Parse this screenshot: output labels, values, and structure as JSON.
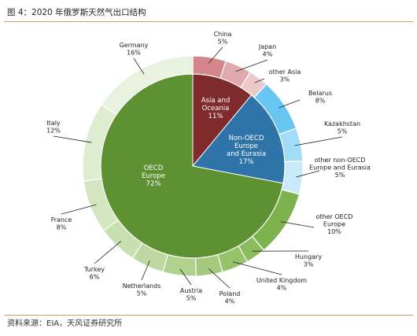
{
  "figure_title": "图 4：2020 年俄罗斯天然气出口结构",
  "source": "资料来源：EIA，天风证券研究所",
  "chart_data": {
    "type": "pie",
    "subtype": "sunburst",
    "inner": [
      {
        "label": "Asia and\nOceania",
        "value": 11,
        "value_label": "11%",
        "color": "#7f2a2b"
      },
      {
        "label": "Non-OECD\nEurope\nand Eurasia",
        "value": 17,
        "value_label": "17%",
        "color": "#2e74a8"
      },
      {
        "label": "OECD\nEurope",
        "value": 72,
        "value_label": "72%",
        "color": "#5e9132"
      }
    ],
    "outer": [
      {
        "label": "China",
        "value": 5,
        "value_label": "5%",
        "parent": 0,
        "color": "#d4868a"
      },
      {
        "label": "Japan",
        "value": 4,
        "value_label": "4%",
        "parent": 0,
        "color": "#e0a9ad"
      },
      {
        "label": "other Asia",
        "value": 3,
        "value_label": "3%",
        "parent": 0,
        "color": "#edc8cb"
      },
      {
        "label": "Belarus",
        "value": 8,
        "value_label": "8%",
        "parent": 1,
        "color": "#67c5f2"
      },
      {
        "label": "Kazakhstan",
        "value": 5,
        "value_label": "5%",
        "parent": 1,
        "color": "#a3dcf7"
      },
      {
        "label": "other non-OECD\nEurope and Eurasia",
        "value": 5,
        "value_label": "5%",
        "parent": 1,
        "color": "#c9eafa"
      },
      {
        "label": "other OECD\nEurope",
        "value": 10,
        "value_label": "10%",
        "parent": 2,
        "color": "#7eb24e"
      },
      {
        "label": "Hungary",
        "value": 3,
        "value_label": "3%",
        "parent": 2,
        "color": "#8cbc5e"
      },
      {
        "label": "United Kingdom",
        "value": 4,
        "value_label": "4%",
        "parent": 2,
        "color": "#96c26a"
      },
      {
        "label": "Poland",
        "value": 4,
        "value_label": "4%",
        "parent": 2,
        "color": "#a3ca7c"
      },
      {
        "label": "Austria",
        "value": 5,
        "value_label": "5%",
        "parent": 2,
        "color": "#b0d28e"
      },
      {
        "label": "Netherlands",
        "value": 5,
        "value_label": "5%",
        "parent": 2,
        "color": "#bdd9a1"
      },
      {
        "label": "Turkey",
        "value": 6,
        "value_label": "6%",
        "parent": 2,
        "color": "#c8e0b0"
      },
      {
        "label": "France",
        "value": 8,
        "value_label": "8%",
        "parent": 2,
        "color": "#d3e6c0"
      },
      {
        "label": "Italy",
        "value": 12,
        "value_label": "12%",
        "parent": 2,
        "color": "#deedd0"
      },
      {
        "label": "Germany",
        "value": 16,
        "value_label": "16%",
        "parent": 2,
        "color": "#e8f2de"
      }
    ]
  }
}
